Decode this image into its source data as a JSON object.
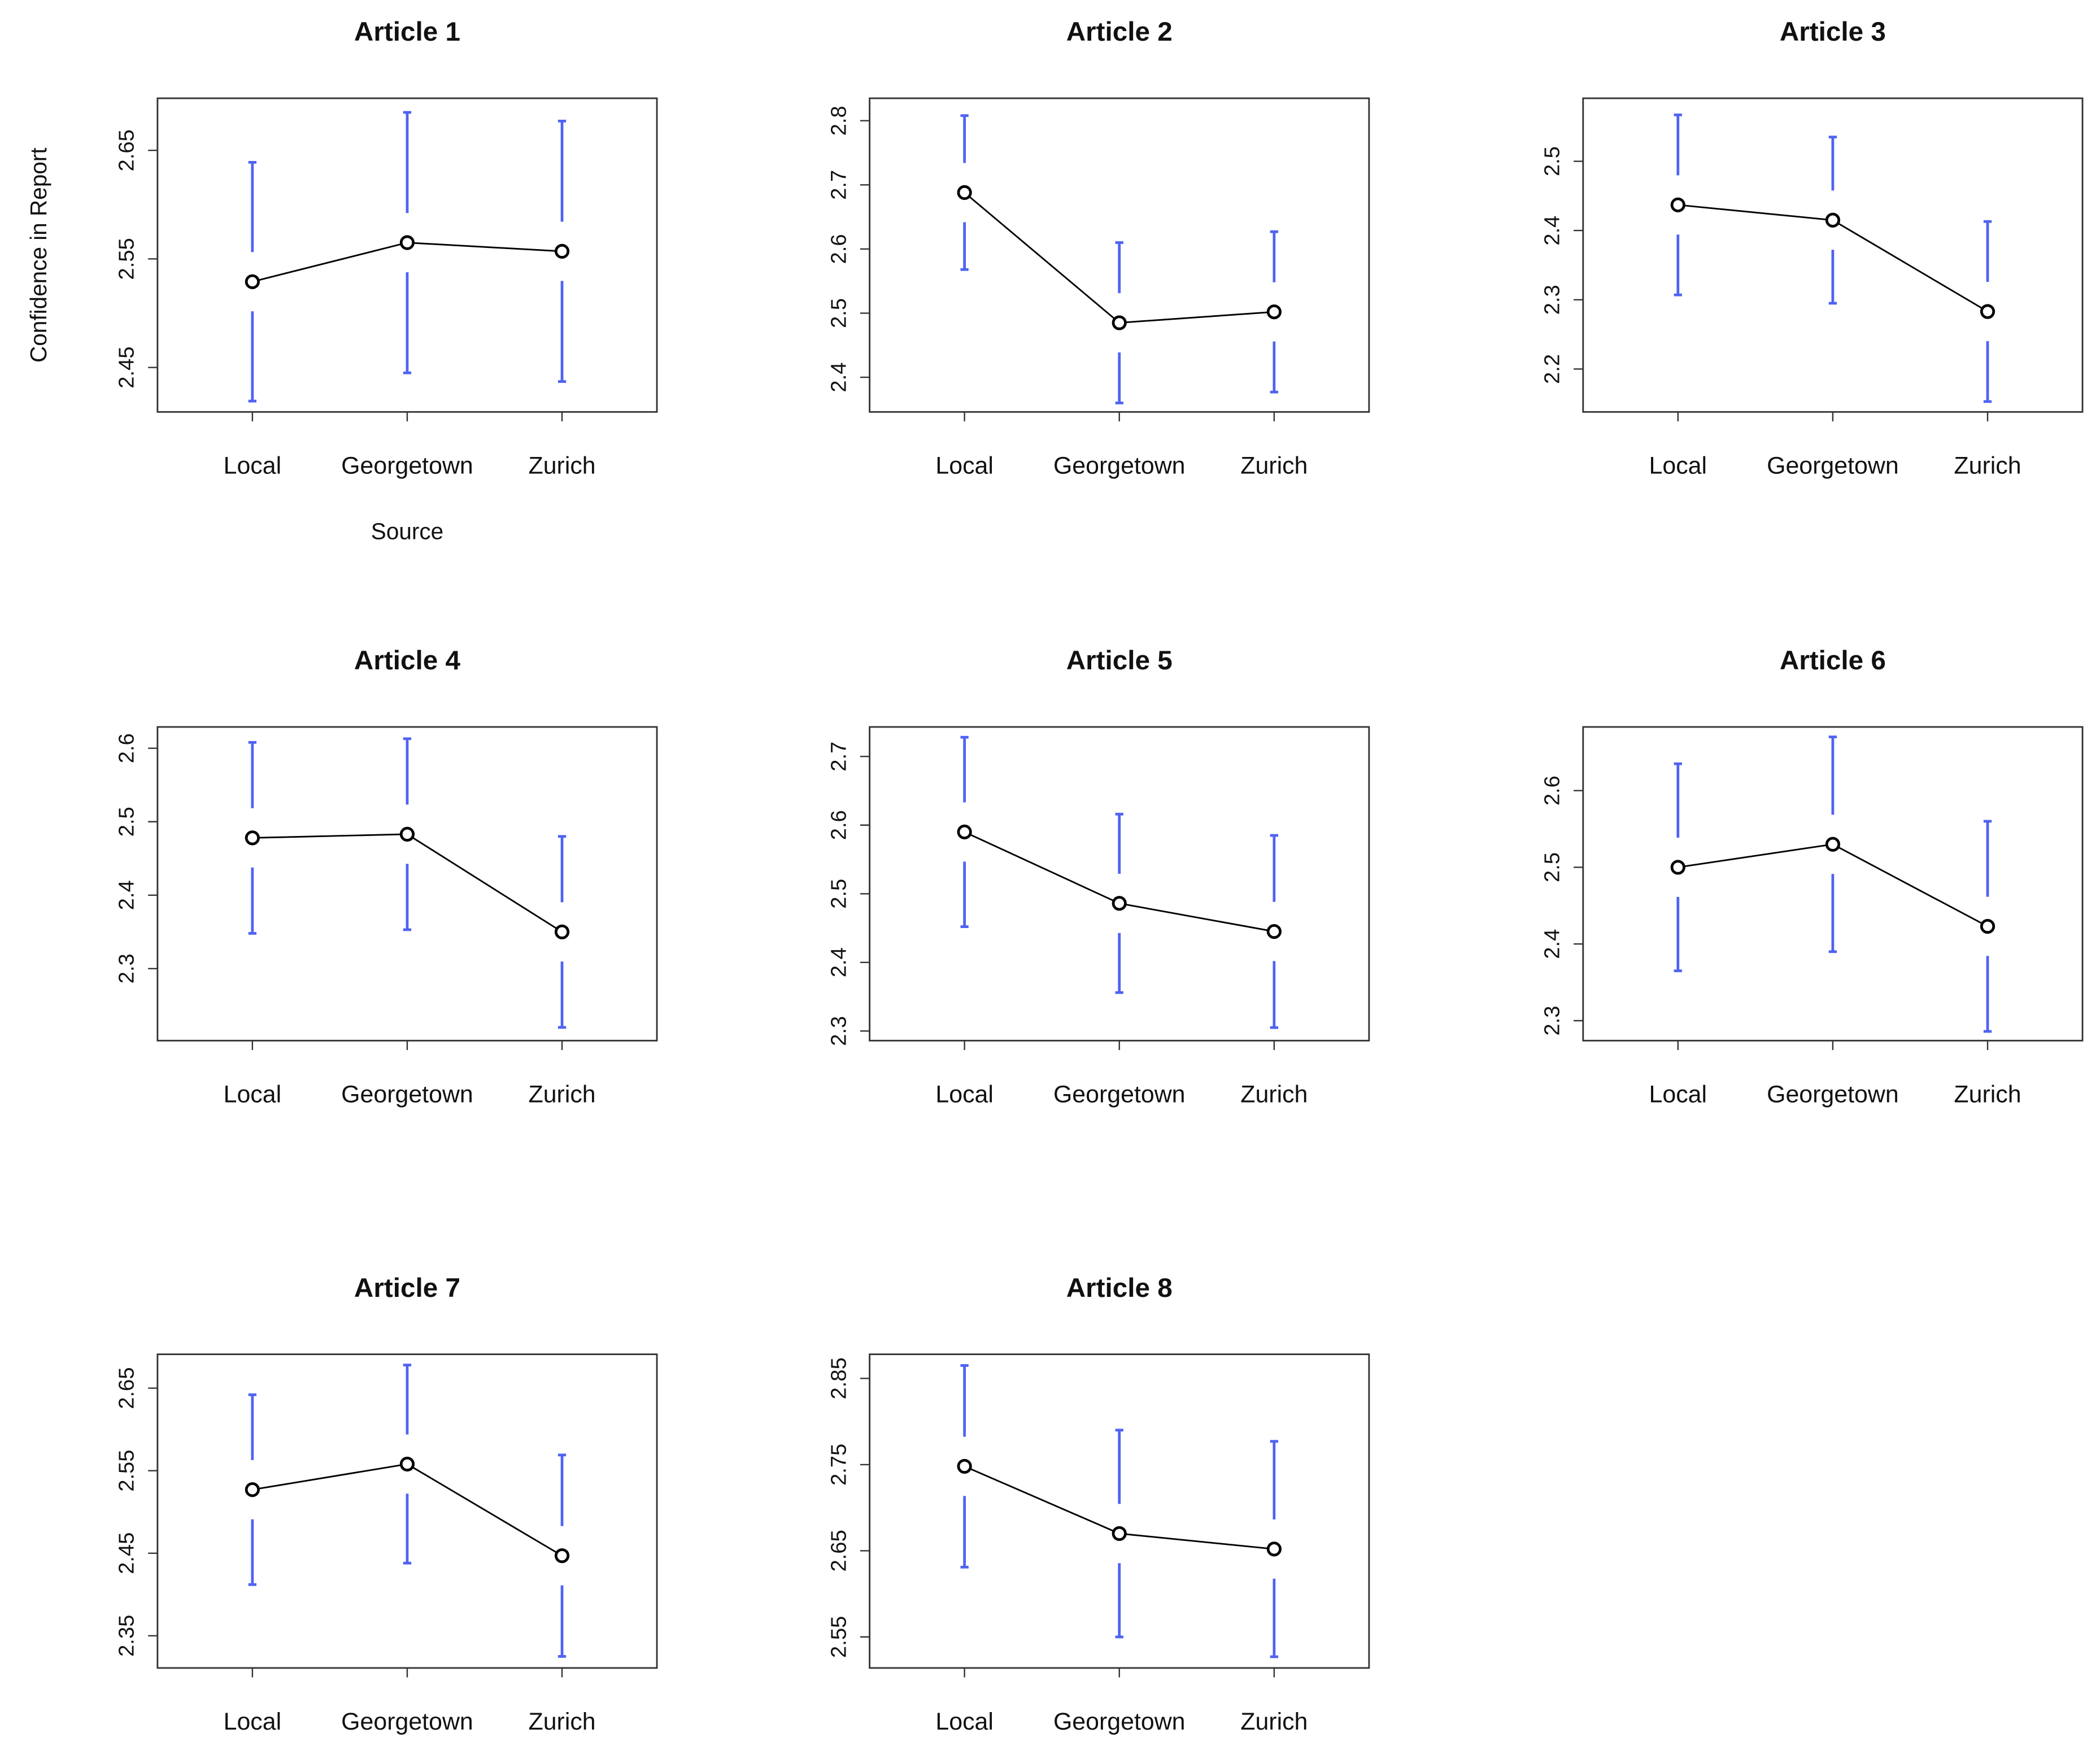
{
  "chart_data": [
    {
      "type": "line",
      "title": "Article 1",
      "x_label": "Source",
      "y_label": "Confidence in Report",
      "categories": [
        "Local",
        "Georgetown",
        "Zurich"
      ],
      "values": [
        2.529,
        2.565,
        2.557
      ],
      "errors": [
        0.11,
        0.12,
        0.12
      ],
      "color": "#000000",
      "error_color": "#4f63f2",
      "ylim": [
        2.409,
        2.698
      ],
      "yticks": [
        2.45,
        2.55,
        2.65
      ]
    },
    {
      "type": "line",
      "title": "Article 2",
      "categories": [
        "Local",
        "Georgetown",
        "Zurich"
      ],
      "values": [
        2.688,
        2.485,
        2.502
      ],
      "errors": [
        0.12,
        0.125,
        0.125
      ],
      "color": "#000000",
      "error_color": "#4f63f2",
      "ylim": [
        2.346,
        2.835
      ],
      "yticks": [
        2.4,
        2.5,
        2.6,
        2.7,
        2.8
      ]
    },
    {
      "type": "line",
      "title": "Article 3",
      "categories": [
        "Local",
        "Georgetown",
        "Zurich"
      ],
      "values": [
        2.437,
        2.415,
        2.283
      ],
      "errors": [
        0.13,
        0.12,
        0.13
      ],
      "color": "#000000",
      "error_color": "#4f63f2",
      "ylim": [
        2.138,
        2.591
      ],
      "yticks": [
        2.2,
        2.3,
        2.4,
        2.5
      ]
    },
    {
      "type": "line",
      "title": "Article 4",
      "categories": [
        "Local",
        "Georgetown",
        "Zurich"
      ],
      "values": [
        2.478,
        2.483,
        2.35
      ],
      "errors": [
        0.13,
        0.13,
        0.13
      ],
      "color": "#000000",
      "error_color": "#4f63f2",
      "ylim": [
        2.202,
        2.629
      ],
      "yticks": [
        2.3,
        2.4,
        2.5,
        2.6
      ]
    },
    {
      "type": "line",
      "title": "Article 5",
      "categories": [
        "Local",
        "Georgetown",
        "Zurich"
      ],
      "values": [
        2.59,
        2.486,
        2.445
      ],
      "errors": [
        0.138,
        0.13,
        0.14
      ],
      "color": "#000000",
      "error_color": "#4f63f2",
      "ylim": [
        2.286,
        2.743
      ],
      "yticks": [
        2.3,
        2.4,
        2.5,
        2.6,
        2.7
      ]
    },
    {
      "type": "line",
      "title": "Article 6",
      "categories": [
        "Local",
        "Georgetown",
        "Zurich"
      ],
      "values": [
        2.5,
        2.53,
        2.423
      ],
      "errors": [
        0.135,
        0.14,
        0.137
      ],
      "color": "#000000",
      "error_color": "#4f63f2",
      "ylim": [
        2.274,
        2.683
      ],
      "yticks": [
        2.3,
        2.4,
        2.5,
        2.6
      ]
    },
    {
      "type": "line",
      "title": "Article 7",
      "categories": [
        "Local",
        "Georgetown",
        "Zurich"
      ],
      "values": [
        2.527,
        2.558,
        2.447
      ],
      "errors": [
        0.115,
        0.12,
        0.122
      ],
      "color": "#000000",
      "error_color": "#4f63f2",
      "ylim": [
        2.311,
        2.691
      ],
      "yticks": [
        2.35,
        2.45,
        2.55,
        2.65
      ]
    },
    {
      "type": "line",
      "title": "Article 8",
      "categories": [
        "Local",
        "Georgetown",
        "Zurich"
      ],
      "values": [
        2.748,
        2.67,
        2.652
      ],
      "errors": [
        0.117,
        0.12,
        0.125
      ],
      "color": "#000000",
      "error_color": "#4f63f2",
      "ylim": [
        2.514,
        2.878
      ],
      "yticks": [
        2.55,
        2.65,
        2.75,
        2.85
      ]
    }
  ]
}
